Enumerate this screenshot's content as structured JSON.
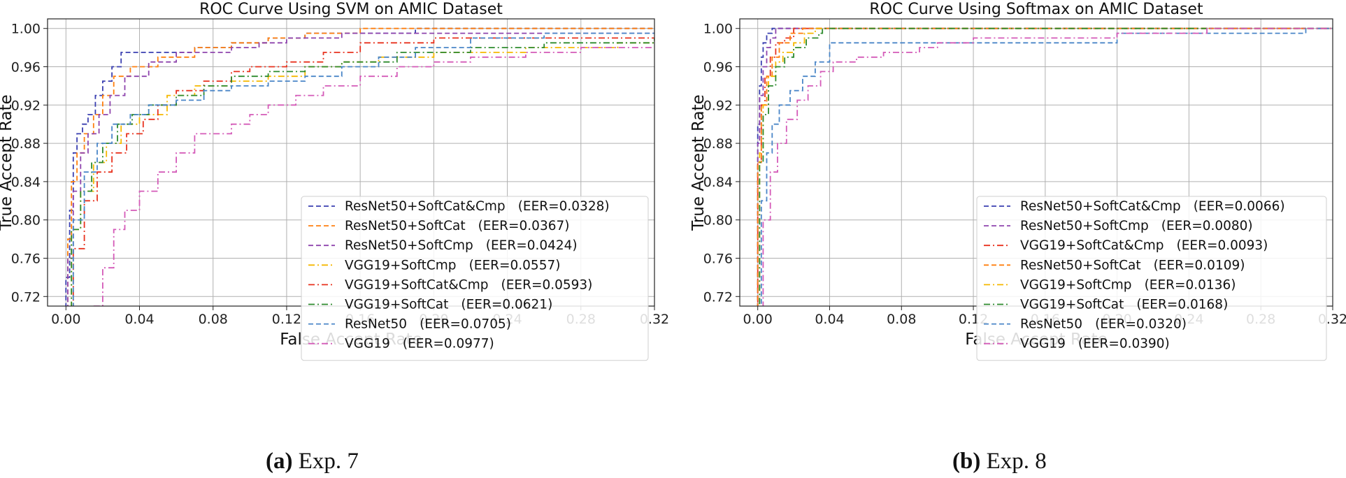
{
  "chart_data": [
    {
      "type": "line",
      "title": "ROC Curve Using SVM on AMIC Dataset",
      "xlabel": "False Accept Rate",
      "ylabel": "True Accept Rate",
      "xlim": [
        -0.01,
        0.32
      ],
      "ylim": [
        0.71,
        1.01
      ],
      "xticks": [
        0.0,
        0.04,
        0.08,
        0.12,
        0.16,
        0.2,
        0.24,
        0.28,
        0.32
      ],
      "xtick_labels": [
        "0.00",
        "0.04",
        "0.08",
        "0.12",
        "0.16",
        "0.20",
        "0.24",
        "0.28",
        "0.32"
      ],
      "yticks": [
        0.72,
        0.76,
        0.8,
        0.84,
        0.88,
        0.92,
        0.96,
        1.0
      ],
      "ytick_labels": [
        "0.72",
        "0.76",
        "0.80",
        "0.84",
        "0.88",
        "0.92",
        "0.96",
        "1.00"
      ],
      "grid": true,
      "legend_position": "lower-right",
      "caption_bold": "(a)",
      "caption_text": " Exp. 7",
      "series": [
        {
          "name": "ResNet50+SoftCat&Cmp",
          "eer": "(EER=0.0328)",
          "color": "#3a3fb0",
          "dash": "dashed",
          "x": [
            0.0,
            0.0,
            0.002,
            0.004,
            0.006,
            0.009,
            0.012,
            0.016,
            0.02,
            0.025,
            0.03,
            0.035,
            0.05,
            0.07,
            0.09,
            0.11,
            0.13,
            0.16,
            0.19,
            0.32
          ],
          "y": [
            0.7,
            0.74,
            0.81,
            0.87,
            0.89,
            0.9,
            0.91,
            0.93,
            0.945,
            0.96,
            0.975,
            0.975,
            0.975,
            0.98,
            0.985,
            0.99,
            0.995,
            0.995,
            1.0,
            1.0
          ]
        },
        {
          "name": "ResNet50+SoftCat",
          "eer": "(EER=0.0367)",
          "color": "#ff7f0e",
          "dash": "dashed",
          "x": [
            0.0,
            0.001,
            0.003,
            0.006,
            0.01,
            0.015,
            0.02,
            0.026,
            0.035,
            0.05,
            0.07,
            0.09,
            0.11,
            0.13,
            0.16,
            0.32
          ],
          "y": [
            0.7,
            0.78,
            0.84,
            0.87,
            0.89,
            0.91,
            0.93,
            0.95,
            0.96,
            0.97,
            0.98,
            0.985,
            0.99,
            0.995,
            1.0,
            1.0
          ]
        },
        {
          "name": "ResNet50+SoftCmp",
          "eer": "(EER=0.0424)",
          "color": "#8e44ad",
          "dash": "dashed",
          "x": [
            0.0,
            0.001,
            0.004,
            0.008,
            0.012,
            0.018,
            0.024,
            0.032,
            0.045,
            0.06,
            0.075,
            0.09,
            0.105,
            0.12,
            0.15,
            0.2,
            0.32
          ],
          "y": [
            0.7,
            0.76,
            0.83,
            0.87,
            0.89,
            0.91,
            0.93,
            0.95,
            0.965,
            0.975,
            0.975,
            0.98,
            0.985,
            0.99,
            0.995,
            0.995,
            0.995
          ]
        },
        {
          "name": "VGG19+SoftCmp",
          "eer": "(EER=0.0557)",
          "color": "#f5b800",
          "dash": "dashdot",
          "x": [
            0.0,
            0.003,
            0.008,
            0.015,
            0.022,
            0.03,
            0.04,
            0.055,
            0.07,
            0.09,
            0.11,
            0.13,
            0.15,
            0.17,
            0.2,
            0.25,
            0.3,
            0.32
          ],
          "y": [
            0.7,
            0.79,
            0.83,
            0.86,
            0.88,
            0.9,
            0.91,
            0.93,
            0.94,
            0.945,
            0.95,
            0.96,
            0.965,
            0.97,
            0.975,
            0.98,
            0.985,
            0.99
          ]
        },
        {
          "name": "VGG19+SoftCat&Cmp",
          "eer": "(EER=0.0593)",
          "color": "#e8321e",
          "dash": "dashdot",
          "x": [
            0.0,
            0.004,
            0.01,
            0.017,
            0.025,
            0.033,
            0.042,
            0.05,
            0.06,
            0.075,
            0.09,
            0.1,
            0.12,
            0.14,
            0.16,
            0.2,
            0.25,
            0.32
          ],
          "y": [
            0.7,
            0.77,
            0.82,
            0.85,
            0.87,
            0.89,
            0.905,
            0.92,
            0.935,
            0.945,
            0.955,
            0.96,
            0.965,
            0.975,
            0.985,
            0.99,
            0.99,
            0.99
          ]
        },
        {
          "name": "VGG19+SoftCat",
          "eer": "(EER=0.0621)",
          "color": "#2e8b2e",
          "dash": "dashdot",
          "x": [
            0.0,
            0.003,
            0.008,
            0.014,
            0.02,
            0.028,
            0.036,
            0.045,
            0.06,
            0.075,
            0.09,
            0.11,
            0.13,
            0.15,
            0.18,
            0.22,
            0.26,
            0.32
          ],
          "y": [
            0.7,
            0.79,
            0.83,
            0.86,
            0.88,
            0.9,
            0.91,
            0.92,
            0.93,
            0.94,
            0.95,
            0.955,
            0.96,
            0.965,
            0.975,
            0.98,
            0.985,
            0.99
          ]
        },
        {
          "name": "ResNet50",
          "eer": "(EER=0.0705)",
          "color": "#4a86c8",
          "dash": "dashed",
          "x": [
            0.0,
            0.004,
            0.01,
            0.017,
            0.025,
            0.035,
            0.045,
            0.06,
            0.075,
            0.09,
            0.11,
            0.13,
            0.15,
            0.17,
            0.19,
            0.22,
            0.26,
            0.32
          ],
          "y": [
            0.7,
            0.8,
            0.85,
            0.88,
            0.9,
            0.91,
            0.92,
            0.925,
            0.935,
            0.94,
            0.945,
            0.95,
            0.96,
            0.97,
            0.98,
            0.99,
            0.995,
            0.995
          ]
        },
        {
          "name": "VGG19",
          "eer": "(EER=0.0977)",
          "color": "#d45ab8",
          "dash": "dashdot",
          "x": [
            0.015,
            0.02,
            0.026,
            0.032,
            0.04,
            0.05,
            0.06,
            0.07,
            0.08,
            0.09,
            0.1,
            0.11,
            0.125,
            0.14,
            0.16,
            0.18,
            0.2,
            0.22,
            0.25,
            0.28,
            0.32
          ],
          "y": [
            0.71,
            0.75,
            0.79,
            0.81,
            0.83,
            0.85,
            0.87,
            0.89,
            0.89,
            0.9,
            0.91,
            0.92,
            0.93,
            0.94,
            0.95,
            0.96,
            0.965,
            0.97,
            0.975,
            0.98,
            0.98
          ]
        }
      ]
    },
    {
      "type": "line",
      "title": "ROC Curve Using Softmax on AMIC Dataset",
      "xlabel": "False Accept Rate",
      "ylabel": "True Accept Rate",
      "xlim": [
        -0.01,
        0.32
      ],
      "ylim": [
        0.71,
        1.01
      ],
      "xticks": [
        0.0,
        0.04,
        0.08,
        0.12,
        0.16,
        0.2,
        0.24,
        0.28,
        0.32
      ],
      "xtick_labels": [
        "0.00",
        "0.04",
        "0.08",
        "0.12",
        "0.16",
        "0.20",
        "0.24",
        "0.28",
        "0.32"
      ],
      "yticks": [
        0.72,
        0.76,
        0.8,
        0.84,
        0.88,
        0.92,
        0.96,
        1.0
      ],
      "ytick_labels": [
        "0.72",
        "0.76",
        "0.80",
        "0.84",
        "0.88",
        "0.92",
        "0.96",
        "1.00"
      ],
      "grid": true,
      "legend_position": "lower-right",
      "caption_bold": "(b)",
      "caption_text": " Exp. 8",
      "series": [
        {
          "name": "ResNet50+SoftCat&Cmp",
          "eer": "(EER=0.0066)",
          "color": "#3a3fb0",
          "dash": "dashed",
          "x": [
            0.0,
            0.0,
            0.001,
            0.002,
            0.003,
            0.005,
            0.008,
            0.32
          ],
          "y": [
            0.7,
            0.9,
            0.94,
            0.97,
            0.985,
            0.995,
            1.0,
            1.0
          ]
        },
        {
          "name": "ResNet50+SoftCmp",
          "eer": "(EER=0.0080)",
          "color": "#8e44ad",
          "dash": "dashed",
          "x": [
            0.0,
            0.0,
            0.001,
            0.003,
            0.005,
            0.007,
            0.01,
            0.32
          ],
          "y": [
            0.7,
            0.88,
            0.93,
            0.96,
            0.98,
            0.99,
            1.0,
            1.0
          ]
        },
        {
          "name": "VGG19+SoftCat&Cmp",
          "eer": "(EER=0.0093)",
          "color": "#e8321e",
          "dash": "dashdot",
          "x": [
            0.0,
            0.0,
            0.002,
            0.004,
            0.007,
            0.01,
            0.015,
            0.02,
            0.32
          ],
          "y": [
            0.7,
            0.86,
            0.92,
            0.95,
            0.97,
            0.985,
            0.99,
            1.0,
            1.0
          ]
        },
        {
          "name": "ResNet50+SoftCat",
          "eer": "(EER=0.0109)",
          "color": "#ff7f0e",
          "dash": "dashed",
          "x": [
            0.0,
            0.0,
            0.002,
            0.005,
            0.008,
            0.012,
            0.018,
            0.025,
            0.32
          ],
          "y": [
            0.7,
            0.86,
            0.92,
            0.95,
            0.97,
            0.985,
            0.995,
            1.0,
            1.0
          ]
        },
        {
          "name": "VGG19+SoftCmp",
          "eer": "(EER=0.0136)",
          "color": "#f5b800",
          "dash": "dashdot",
          "x": [
            0.0,
            0.001,
            0.003,
            0.006,
            0.01,
            0.014,
            0.02,
            0.026,
            0.032,
            0.32
          ],
          "y": [
            0.7,
            0.87,
            0.92,
            0.95,
            0.965,
            0.975,
            0.985,
            0.995,
            1.0,
            1.0
          ]
        },
        {
          "name": "VGG19+SoftCat",
          "eer": "(EER=0.0168)",
          "color": "#2e8b2e",
          "dash": "dashdot",
          "x": [
            0.0,
            0.001,
            0.003,
            0.006,
            0.01,
            0.015,
            0.02,
            0.027,
            0.034,
            0.036,
            0.32
          ],
          "y": [
            0.7,
            0.86,
            0.91,
            0.94,
            0.96,
            0.97,
            0.98,
            0.99,
            0.995,
            1.0,
            1.0
          ]
        },
        {
          "name": "ResNet50",
          "eer": "(EER=0.0320)",
          "color": "#4a86c8",
          "dash": "dashed",
          "x": [
            0.0,
            0.002,
            0.005,
            0.008,
            0.012,
            0.018,
            0.025,
            0.032,
            0.04,
            0.06,
            0.1,
            0.2,
            0.3,
            0.305,
            0.32
          ],
          "y": [
            0.7,
            0.82,
            0.87,
            0.9,
            0.92,
            0.935,
            0.95,
            0.965,
            0.985,
            0.985,
            0.985,
            0.995,
            0.995,
            1.0,
            1.0
          ]
        },
        {
          "name": "VGG19",
          "eer": "(EER=0.0390)",
          "color": "#d45ab8",
          "dash": "dashdot",
          "x": [
            0.0,
            0.003,
            0.007,
            0.011,
            0.016,
            0.022,
            0.028,
            0.035,
            0.042,
            0.055,
            0.07,
            0.09,
            0.1,
            0.12,
            0.15,
            0.2,
            0.25,
            0.3,
            0.32
          ],
          "y": [
            0.7,
            0.8,
            0.85,
            0.88,
            0.905,
            0.925,
            0.94,
            0.955,
            0.965,
            0.97,
            0.975,
            0.98,
            0.985,
            0.99,
            0.99,
            0.995,
            1.0,
            1.0,
            1.0
          ]
        }
      ]
    }
  ]
}
